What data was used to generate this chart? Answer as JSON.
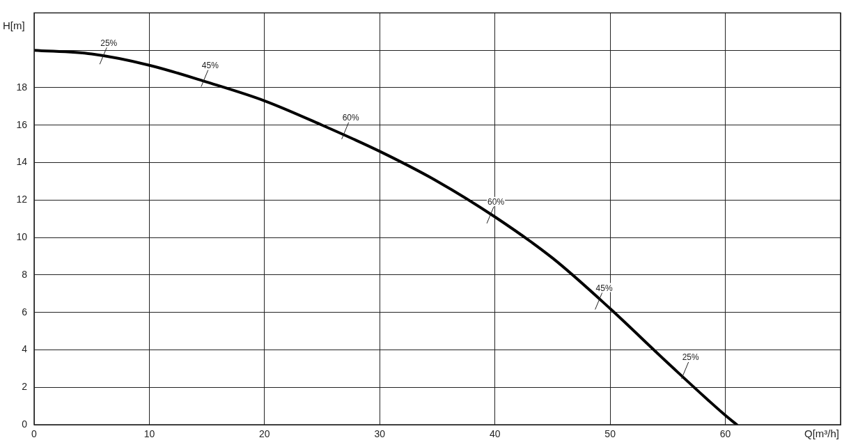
{
  "chart_data": {
    "type": "line",
    "xlabel": "Q[m³/h]",
    "ylabel": "H[m]",
    "xlim": [
      0,
      70
    ],
    "xticks": [
      0,
      10,
      20,
      30,
      40,
      50,
      60,
      {
        "value": 70,
        "label": null
      }
    ],
    "ylim": [
      0,
      22
    ],
    "yticks": [
      0,
      2,
      4,
      6,
      8,
      10,
      12,
      14,
      16,
      18,
      {
        "value": 20,
        "label": null
      }
    ],
    "grid": true,
    "legend": false,
    "marker": "none",
    "line_style": "solid",
    "series": [
      {
        "color": "#000000",
        "x": [
          0,
          5,
          10,
          15,
          20,
          25,
          30,
          35,
          40,
          45,
          50,
          55,
          60,
          61
        ],
        "values": [
          20,
          19.8,
          19.2,
          18.3,
          17.3,
          16,
          14.6,
          13,
          11.1,
          8.9,
          6.2,
          3.3,
          0.5,
          0
        ]
      }
    ],
    "annotations": [
      {
        "text": "25%",
        "x": 6,
        "y": 19.7
      },
      {
        "text": "45%",
        "x": 14.8,
        "y": 18.5
      },
      {
        "text": "60%",
        "x": 27,
        "y": 15.7
      },
      {
        "text": "60%",
        "x": 39.6,
        "y": 11.2
      },
      {
        "text": "45%",
        "x": 49,
        "y": 6.6
      },
      {
        "text": "25%",
        "x": 56.5,
        "y": 2.9
      }
    ]
  }
}
